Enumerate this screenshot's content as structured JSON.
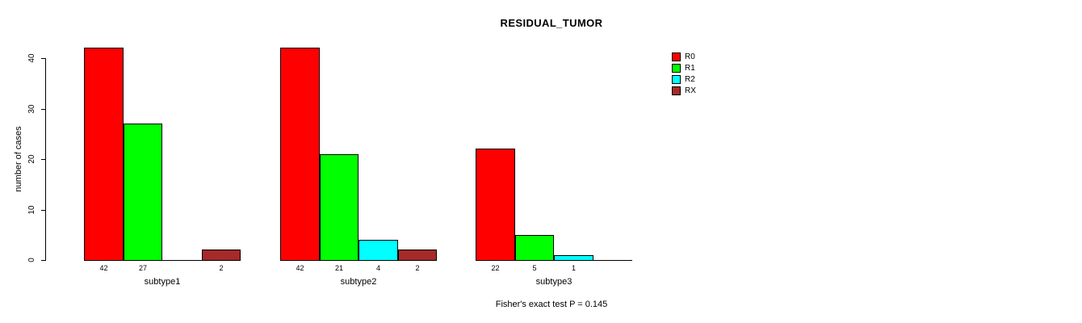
{
  "page": {
    "background_color": "#ffffff"
  },
  "chart_data": {
    "type": "bar",
    "title": "RESIDUAL_TUMOR",
    "xlabel": "",
    "ylabel": "number of cases",
    "categories": [
      "subtype1",
      "subtype2",
      "subtype3"
    ],
    "series": [
      {
        "name": "R0",
        "color": "#ff0000",
        "values": [
          42,
          42,
          22
        ]
      },
      {
        "name": "R1",
        "color": "#00ff00",
        "values": [
          27,
          21,
          5
        ]
      },
      {
        "name": "R2",
        "color": "#00ffff",
        "values": [
          0,
          4,
          1
        ]
      },
      {
        "name": "RX",
        "color": "#a52a2a",
        "values": [
          2,
          2,
          0
        ]
      }
    ],
    "yticks": [
      0,
      10,
      20,
      30,
      40
    ],
    "ylim": [
      0,
      44
    ],
    "grid": false,
    "legend_position": "top-right",
    "bar_value_labels_hide_zero": true,
    "annotation": "Fisher's exact test P = 0.145"
  }
}
